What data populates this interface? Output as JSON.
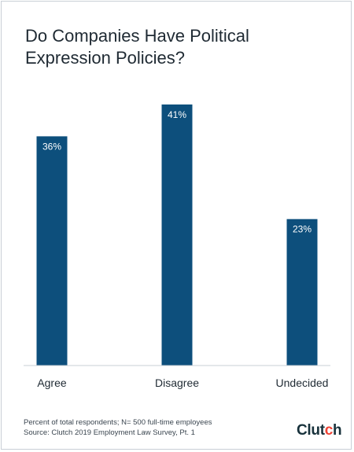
{
  "chart_data": {
    "type": "bar",
    "title": "Do Companies Have Political Expression Policies?",
    "categories": [
      "Agree",
      "Disagree",
      "Undecided"
    ],
    "values": [
      36,
      41,
      23
    ],
    "value_labels": [
      "36%",
      "41%",
      "23%"
    ],
    "ylim": [
      0,
      45
    ],
    "xlabel": "",
    "ylabel": "",
    "grid": false,
    "bar_color": "#0d4f7c"
  },
  "footnote": {
    "line1": "Percent of total respondents; N= 500 full-time employees",
    "line2": "Source: Clutch 2019 Employment Law Survey, Pt. 1"
  },
  "logo": {
    "text": "Clutch",
    "accent_color": "#ef4335"
  }
}
